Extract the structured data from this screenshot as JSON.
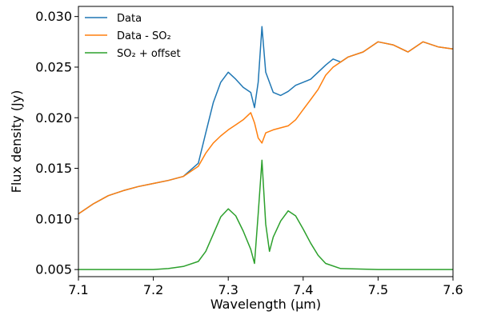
{
  "chart_data": {
    "type": "line",
    "title": "",
    "xlabel": "Wavelength (μm)",
    "ylabel": "Flux density (Jy)",
    "xlim": [
      7.1,
      7.6
    ],
    "ylim": [
      0.0043,
      0.031
    ],
    "xticks": [
      7.1,
      7.2,
      7.3,
      7.4,
      7.5,
      7.6
    ],
    "xtick_labels": [
      "7.1",
      "7.2",
      "7.3",
      "7.4",
      "7.5",
      "7.6"
    ],
    "yticks": [
      0.005,
      0.01,
      0.015,
      0.02,
      0.025,
      0.03
    ],
    "ytick_labels": [
      "0.005",
      "0.010",
      "0.015",
      "0.020",
      "0.025",
      "0.030"
    ],
    "grid": false,
    "legend_position": "top-left",
    "series": [
      {
        "name": "Data",
        "color": "#1f77b4",
        "points": [
          [
            7.1,
            0.0105
          ],
          [
            7.12,
            0.0115
          ],
          [
            7.14,
            0.0123
          ],
          [
            7.16,
            0.0128
          ],
          [
            7.18,
            0.0132
          ],
          [
            7.2,
            0.0135
          ],
          [
            7.22,
            0.0138
          ],
          [
            7.24,
            0.0142
          ],
          [
            7.26,
            0.0155
          ],
          [
            7.27,
            0.0185
          ],
          [
            7.28,
            0.0215
          ],
          [
            7.29,
            0.0235
          ],
          [
            7.3,
            0.0245
          ],
          [
            7.31,
            0.0238
          ],
          [
            7.32,
            0.023
          ],
          [
            7.33,
            0.0225
          ],
          [
            7.335,
            0.021
          ],
          [
            7.34,
            0.0235
          ],
          [
            7.345,
            0.029
          ],
          [
            7.35,
            0.0245
          ],
          [
            7.36,
            0.0225
          ],
          [
            7.37,
            0.0222
          ],
          [
            7.38,
            0.0226
          ],
          [
            7.39,
            0.0232
          ],
          [
            7.4,
            0.0235
          ],
          [
            7.41,
            0.0238
          ],
          [
            7.42,
            0.0245
          ],
          [
            7.43,
            0.0252
          ],
          [
            7.44,
            0.0258
          ],
          [
            7.45,
            0.0255
          ],
          [
            7.46,
            0.026
          ],
          [
            7.48,
            0.0265
          ],
          [
            7.5,
            0.0275
          ],
          [
            7.52,
            0.0272
          ],
          [
            7.54,
            0.0265
          ],
          [
            7.56,
            0.0275
          ],
          [
            7.58,
            0.027
          ],
          [
            7.6,
            0.0268
          ]
        ]
      },
      {
        "name": "Data - SO₂",
        "color": "#ff7f0e",
        "points": [
          [
            7.1,
            0.0105
          ],
          [
            7.12,
            0.0115
          ],
          [
            7.14,
            0.0123
          ],
          [
            7.16,
            0.0128
          ],
          [
            7.18,
            0.0132
          ],
          [
            7.2,
            0.0135
          ],
          [
            7.22,
            0.0138
          ],
          [
            7.24,
            0.0142
          ],
          [
            7.26,
            0.0152
          ],
          [
            7.27,
            0.0165
          ],
          [
            7.28,
            0.0175
          ],
          [
            7.29,
            0.0182
          ],
          [
            7.3,
            0.0188
          ],
          [
            7.31,
            0.0193
          ],
          [
            7.32,
            0.0198
          ],
          [
            7.33,
            0.0205
          ],
          [
            7.335,
            0.0195
          ],
          [
            7.34,
            0.018
          ],
          [
            7.345,
            0.0175
          ],
          [
            7.35,
            0.0185
          ],
          [
            7.36,
            0.0188
          ],
          [
            7.37,
            0.019
          ],
          [
            7.38,
            0.0192
          ],
          [
            7.39,
            0.0198
          ],
          [
            7.4,
            0.0208
          ],
          [
            7.41,
            0.0218
          ],
          [
            7.42,
            0.0228
          ],
          [
            7.43,
            0.0242
          ],
          [
            7.44,
            0.025
          ],
          [
            7.45,
            0.0255
          ],
          [
            7.46,
            0.026
          ],
          [
            7.48,
            0.0265
          ],
          [
            7.5,
            0.0275
          ],
          [
            7.52,
            0.0272
          ],
          [
            7.54,
            0.0265
          ],
          [
            7.56,
            0.0275
          ],
          [
            7.58,
            0.027
          ],
          [
            7.6,
            0.0268
          ]
        ]
      },
      {
        "name": "SO₂ + offset",
        "color": "#2ca02c",
        "points": [
          [
            7.1,
            0.005
          ],
          [
            7.2,
            0.005
          ],
          [
            7.22,
            0.0051
          ],
          [
            7.24,
            0.0053
          ],
          [
            7.26,
            0.0058
          ],
          [
            7.27,
            0.0068
          ],
          [
            7.28,
            0.0085
          ],
          [
            7.29,
            0.0102
          ],
          [
            7.3,
            0.011
          ],
          [
            7.31,
            0.0103
          ],
          [
            7.32,
            0.0088
          ],
          [
            7.33,
            0.007
          ],
          [
            7.335,
            0.0056
          ],
          [
            7.34,
            0.0105
          ],
          [
            7.345,
            0.0158
          ],
          [
            7.35,
            0.0095
          ],
          [
            7.355,
            0.0068
          ],
          [
            7.36,
            0.0082
          ],
          [
            7.37,
            0.0098
          ],
          [
            7.38,
            0.0108
          ],
          [
            7.39,
            0.0103
          ],
          [
            7.4,
            0.009
          ],
          [
            7.41,
            0.0076
          ],
          [
            7.42,
            0.0064
          ],
          [
            7.43,
            0.0056
          ],
          [
            7.45,
            0.0051
          ],
          [
            7.5,
            0.005
          ],
          [
            7.6,
            0.005
          ]
        ]
      }
    ]
  }
}
